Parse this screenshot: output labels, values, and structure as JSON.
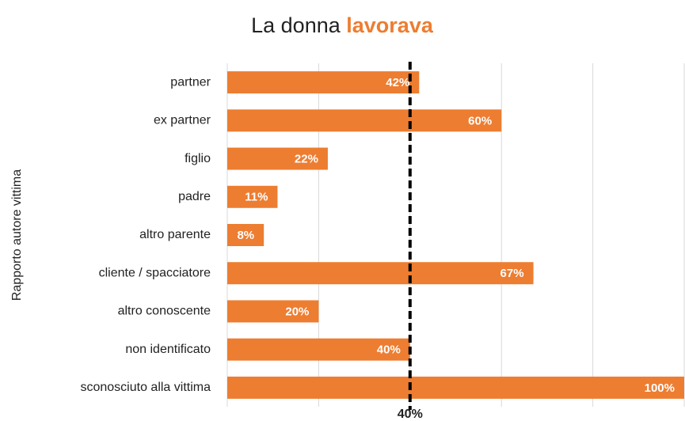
{
  "chart_data": {
    "type": "bar",
    "orientation": "horizontal",
    "title": "La donna",
    "title_emphasis": "lavorava",
    "ylabel": "Rapporto autore vittima",
    "categories": [
      "partner",
      "ex partner",
      "figlio",
      "padre",
      "altro parente",
      "cliente / spacciatore",
      "altro conoscente",
      "non identificato",
      "sconosciuto alla vittima"
    ],
    "values": [
      42,
      60,
      22,
      11,
      8,
      67,
      20,
      40,
      100
    ],
    "value_labels": [
      "42%",
      "60%",
      "22%",
      "11%",
      "8%",
      "67%",
      "20%",
      "40%",
      "100%"
    ],
    "color": "#ed7d31",
    "xlim": [
      0,
      100
    ],
    "xticks": [
      0,
      20,
      40,
      60,
      80,
      100
    ],
    "grid": true,
    "reference_line": {
      "value": 40,
      "label": "40%",
      "color": "#000000"
    }
  }
}
